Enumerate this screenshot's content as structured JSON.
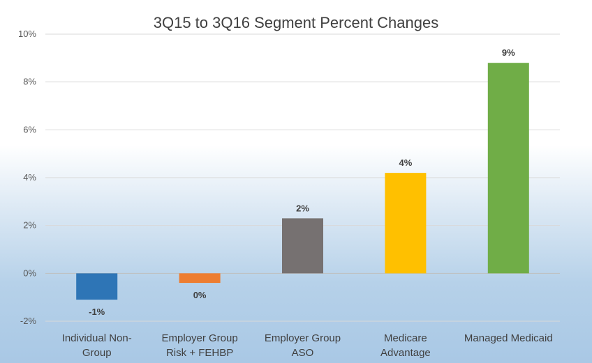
{
  "chart_data": {
    "type": "bar",
    "title": "3Q15 to 3Q16 Segment Percent Changes",
    "categories": [
      [
        "Individual Non-",
        "Group"
      ],
      [
        "Employer Group",
        "Risk + FEHBP"
      ],
      [
        "Employer Group",
        "ASO"
      ],
      [
        "Medicare",
        "Advantage"
      ],
      [
        "Managed Medicaid"
      ]
    ],
    "values": [
      -1.1,
      -0.4,
      2.3,
      4.2,
      8.8
    ],
    "data_labels": [
      "-1%",
      "0%",
      "2%",
      "4%",
      "9%"
    ],
    "colors": [
      "#2e75b6",
      "#ed7d31",
      "#767171",
      "#ffc000",
      "#70ad47"
    ],
    "ylim": [
      -2,
      10
    ],
    "yticks": [
      -2,
      0,
      2,
      4,
      6,
      8,
      10
    ],
    "ytick_labels": [
      "-2%",
      "0%",
      "2%",
      "4%",
      "6%",
      "8%",
      "10%"
    ],
    "grid": true,
    "legend": "none"
  }
}
